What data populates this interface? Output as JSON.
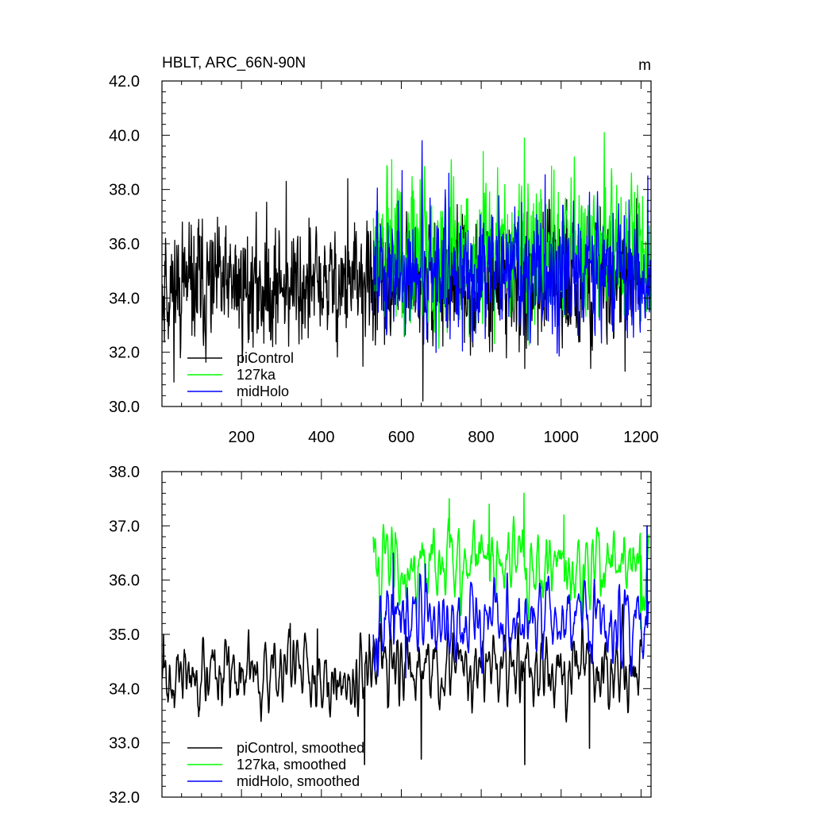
{
  "chart_data": [
    {
      "type": "line",
      "title": "HBLT, ARC_66N-90N",
      "units": "m",
      "xlim": [
        1,
        1225
      ],
      "ylim": [
        30.0,
        42.0
      ],
      "x_ticks": [
        200,
        400,
        600,
        800,
        1000,
        1200
      ],
      "x_tick_labels": [
        "200",
        "400",
        "600",
        "800",
        "1000",
        "1200"
      ],
      "y_ticks": [
        30,
        32,
        34,
        36,
        38,
        40,
        42
      ],
      "y_tick_labels": [
        "30.0",
        "32.0",
        "34.0",
        "36.0",
        "38.0",
        "40.0",
        "42.0"
      ],
      "legend": "bottom-left",
      "series": [
        {
          "name": "piControl",
          "color": "#000000",
          "x_range": [
            1,
            1200
          ],
          "mean": 34.3,
          "sd": 1.2,
          "trend": 0.0004,
          "seed": 11,
          "peaks": [
            [
              10,
              36.2
            ],
            [
              52,
              36.8
            ],
            [
              93,
              36.9
            ],
            [
              312,
              38.3
            ],
            [
              466,
              38.4
            ],
            [
              654,
              30.2
            ],
            [
              909,
              31.4
            ],
            [
              1074,
              31.4
            ],
            [
              1160,
              31.3
            ]
          ]
        },
        {
          "name": "127ka",
          "color": "#00ff00",
          "x_range": [
            530,
            1225
          ],
          "mean": 35.7,
          "sd": 1.4,
          "trend": 0.0,
          "seed": 29,
          "peaks": [
            [
              576,
              39.1
            ],
            [
              725,
              39.1
            ],
            [
              805,
              39.4
            ],
            [
              908,
              39.9
            ],
            [
              1108,
              40.1
            ],
            [
              1033,
              39.2
            ]
          ]
        },
        {
          "name": "midHolo",
          "color": "#0000ff",
          "x_range": [
            530,
            1225
          ],
          "mean": 35.0,
          "sd": 1.25,
          "trend": 0.0,
          "seed": 47,
          "peaks": [
            [
              652,
              39.8
            ],
            [
              602,
              38.7
            ],
            [
              719,
              38.6
            ],
            [
              1217,
              38.5
            ],
            [
              786,
              32.7
            ],
            [
              1220,
              33.6
            ]
          ]
        }
      ]
    },
    {
      "type": "line",
      "title": "",
      "xlim": [
        1,
        1225
      ],
      "ylim": [
        32.0,
        38.0
      ],
      "x_ticks": [
        200,
        400,
        600,
        800,
        1000,
        1200
      ],
      "y_ticks": [
        32,
        33,
        34,
        35,
        36,
        37,
        38
      ],
      "y_tick_labels": [
        "32.0",
        "33.0",
        "34.0",
        "35.0",
        "36.0",
        "37.0",
        "38.0"
      ],
      "legend": "bottom-left",
      "series": [
        {
          "name": "piControl, smoothed",
          "color": "#000000",
          "x_range": [
            1,
            1200
          ],
          "mean": 34.2,
          "sd": 0.45,
          "trend": 0.0002,
          "seed": 71,
          "peaks": [
            [
              5,
              35.0
            ],
            [
              322,
              35.2
            ],
            [
              390,
              35.1
            ],
            [
              520,
              35.0
            ],
            [
              508,
              32.6
            ],
            [
              650,
              32.7
            ],
            [
              909,
              32.6
            ],
            [
              1071,
              32.9
            ]
          ]
        },
        {
          "name": "127ka, smoothed",
          "color": "#00ff00",
          "x_range": [
            530,
            1220
          ],
          "mean": 36.3,
          "sd": 0.45,
          "trend": 0.0,
          "seed": 83,
          "peaks": [
            [
              530,
              36.8
            ],
            [
              720,
              37.5
            ],
            [
              820,
              37.4
            ],
            [
              907,
              37.6
            ],
            [
              1007,
              37.2
            ],
            [
              1215,
              37.0
            ],
            [
              1199,
              35.1
            ]
          ]
        },
        {
          "name": "midHolo, smoothed",
          "color": "#0000ff",
          "x_range": [
            530,
            1220
          ],
          "mean": 35.2,
          "sd": 0.45,
          "trend": 0.0,
          "seed": 97,
          "peaks": [
            [
              580,
              36.5
            ],
            [
              660,
              36.3
            ],
            [
              1215,
              37.0
            ],
            [
              1222,
              34.9
            ],
            [
              611,
              34.2
            ]
          ]
        }
      ]
    }
  ]
}
